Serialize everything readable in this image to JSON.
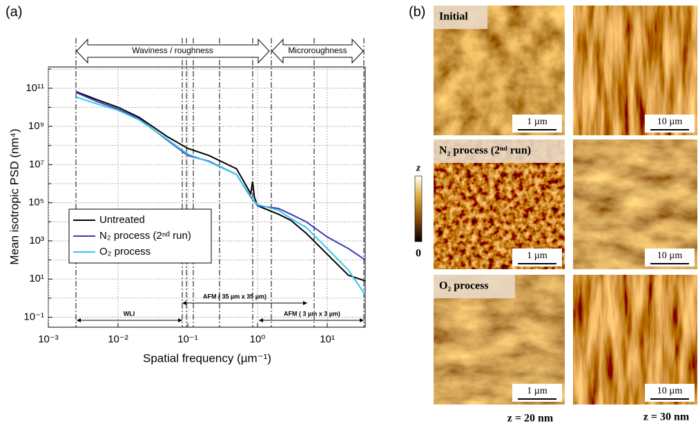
{
  "panel_labels": [
    "(a)",
    "(b)"
  ],
  "chart_data": {
    "type": "line",
    "xlabel": "Spatial frequency (µm⁻¹)",
    "ylabel": "Mean isotropic PSD (nm⁴)",
    "xscale": "log",
    "yscale": "log",
    "xlim": [
      0.001,
      35
    ],
    "ylim": [
      0.03,
      1300000000000.0
    ],
    "xticks": [
      {
        "value": 0.001,
        "label": "10⁻³"
      },
      {
        "value": 0.01,
        "label": "10⁻²"
      },
      {
        "value": 0.1,
        "label": "10⁻¹"
      },
      {
        "value": 1,
        "label": "10⁰"
      },
      {
        "value": 10,
        "label": "10¹"
      }
    ],
    "yticks": [
      {
        "value": 0.1,
        "label": "10⁻¹"
      },
      {
        "value": 10,
        "label": "10¹"
      },
      {
        "value": 1000,
        "label": "10³"
      },
      {
        "value": 100000,
        "label": "10⁵"
      },
      {
        "value": 10000000,
        "label": "10⁷"
      },
      {
        "value": 1000000000,
        "label": "10⁹"
      },
      {
        "value": 100000000000,
        "label": "10¹¹"
      }
    ],
    "yminorticks": [
      1,
      100,
      10000,
      1000000,
      100000000,
      10000000000,
      1000000000000
    ],
    "grid": true,
    "legend": "center left",
    "x": [
      0.0025,
      0.005,
      0.01,
      0.02,
      0.05,
      0.1,
      0.2,
      0.5,
      0.8,
      0.85,
      0.9,
      1,
      2,
      3,
      5,
      10,
      20,
      35
    ],
    "series": [
      {
        "name": "Untreated",
        "color": "#000000",
        "values": [
          66000000000,
          25000000000,
          10000000000,
          3000000000,
          300000000,
          70000000,
          30000000,
          6000000,
          300000,
          1300000,
          200000,
          70000,
          25000,
          12000,
          2500,
          200,
          16,
          8
        ]
      },
      {
        "name": "N₂ process (2ⁿᵈ run)",
        "color": "#3a3ab8",
        "values": [
          60000000000,
          20000000000,
          8000000000,
          2500000000,
          200000000,
          30000000,
          15000000,
          3000000,
          200000,
          150000,
          120000,
          70000,
          50000,
          25000,
          10000,
          1600,
          400,
          100
        ]
      },
      {
        "name": "O₂ process",
        "color": "#36c6ea",
        "values": [
          35000000000,
          15000000000,
          7000000000,
          2200000000,
          220000000,
          35000000,
          14000000,
          3000000,
          220000,
          160000,
          120000,
          80000,
          40000,
          15000,
          5000,
          400,
          30,
          1.5
        ]
      }
    ],
    "annotations": [
      "Waviness / roughness",
      "Microroughness",
      "WLI",
      "AFM ( 35 µm x 35 µm)",
      "AFM ( 3 µm x 3 µm)"
    ]
  },
  "afm_images": {
    "rows": [
      {
        "label": "Initial",
        "scale_bars": [
          "1 µm",
          "10 µm"
        ]
      },
      {
        "label": "N₂ process (2ⁿᵈ run)",
        "scale_bars": [
          "1 µm",
          "10 µm"
        ]
      },
      {
        "label": "O₂ process",
        "scale_bars": [
          "1 µm",
          "10 µm"
        ]
      }
    ],
    "colorbar": {
      "title": "z",
      "min_label": "0"
    },
    "z_ranges": [
      "z = 20 nm",
      "z = 30 nm"
    ]
  }
}
